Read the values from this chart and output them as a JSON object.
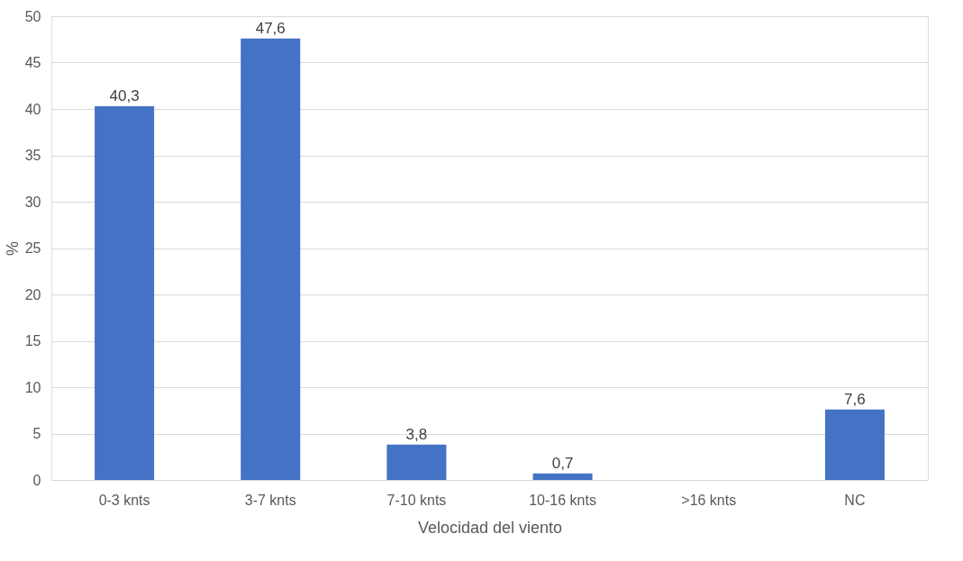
{
  "chart_data": {
    "type": "bar",
    "xlabel": "Velocidad del viento",
    "ylabel": "%",
    "categories": [
      "0-3 knts",
      "3-7 knts",
      "7-10 knts",
      "10-16 knts",
      ">16 knts",
      "NC"
    ],
    "values": [
      40.3,
      47.6,
      3.8,
      0.7,
      null,
      7.6
    ],
    "value_labels": [
      "40,3",
      "47,6",
      "3,8",
      "0,7",
      null,
      "7,6"
    ],
    "color": "#4472c4",
    "ylim": [
      0,
      50
    ],
    "yticks": [
      0,
      5,
      10,
      15,
      20,
      25,
      30,
      35,
      40,
      45,
      50
    ],
    "grid": "y"
  }
}
